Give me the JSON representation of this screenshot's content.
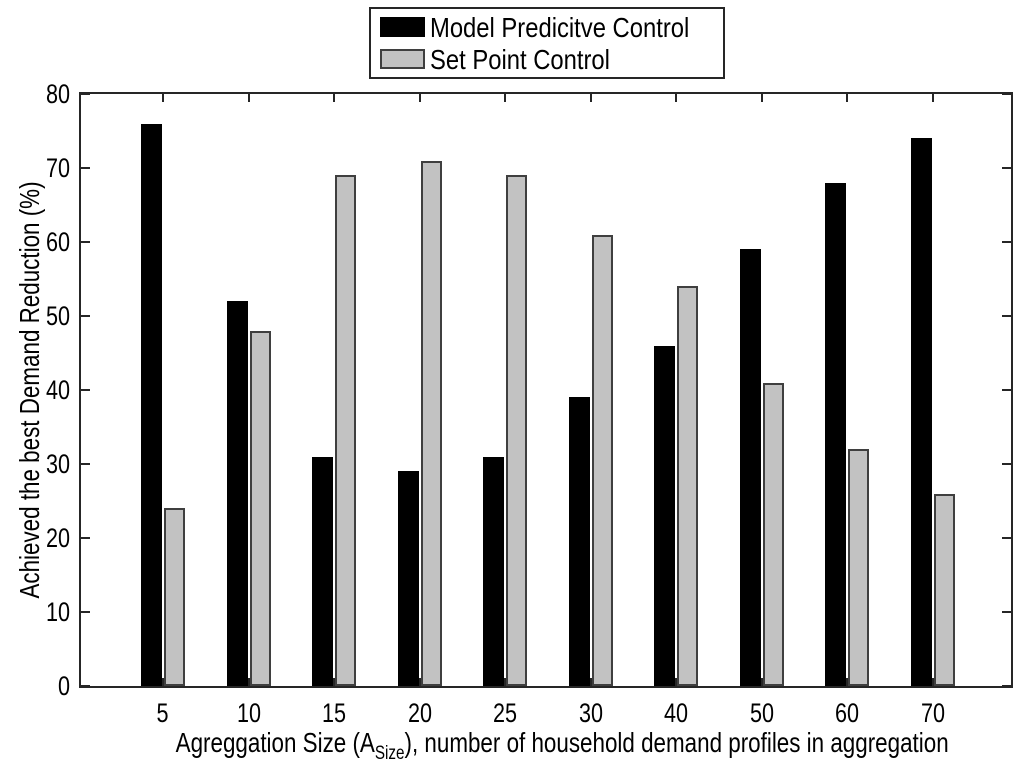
{
  "figure": {
    "background": "#ffffff",
    "axis_color": "#262626"
  },
  "chart_data": {
    "type": "bar",
    "title": "",
    "categories": [
      "5",
      "10",
      "15",
      "20",
      "25",
      "30",
      "40",
      "50",
      "60",
      "70"
    ],
    "series": [
      {
        "name": "Model Predicitve Control",
        "fill": "#000000",
        "edge": "#000000",
        "values": [
          76,
          52,
          31,
          29,
          31,
          39,
          46,
          59,
          68,
          74
        ]
      },
      {
        "name": "Set Point Control",
        "fill": "#c2c2c2",
        "edge": "#3f3f3f",
        "values": [
          24,
          48,
          69,
          71,
          69,
          61,
          54,
          41,
          32,
          26
        ]
      }
    ],
    "ylabel": "Achieved the best Demand Reduction (%)",
    "xlabel_prefix": "Agreggation Size (A",
    "xlabel_subscript": "Size",
    "xlabel_suffix": "), number of household demand profiles in aggregation",
    "ylim": [
      0,
      80
    ],
    "yticks": [
      0,
      10,
      20,
      30,
      40,
      50,
      60,
      70,
      80
    ],
    "grid": false,
    "legend_position": "top-center-outside",
    "bar_edge_width": 2
  }
}
